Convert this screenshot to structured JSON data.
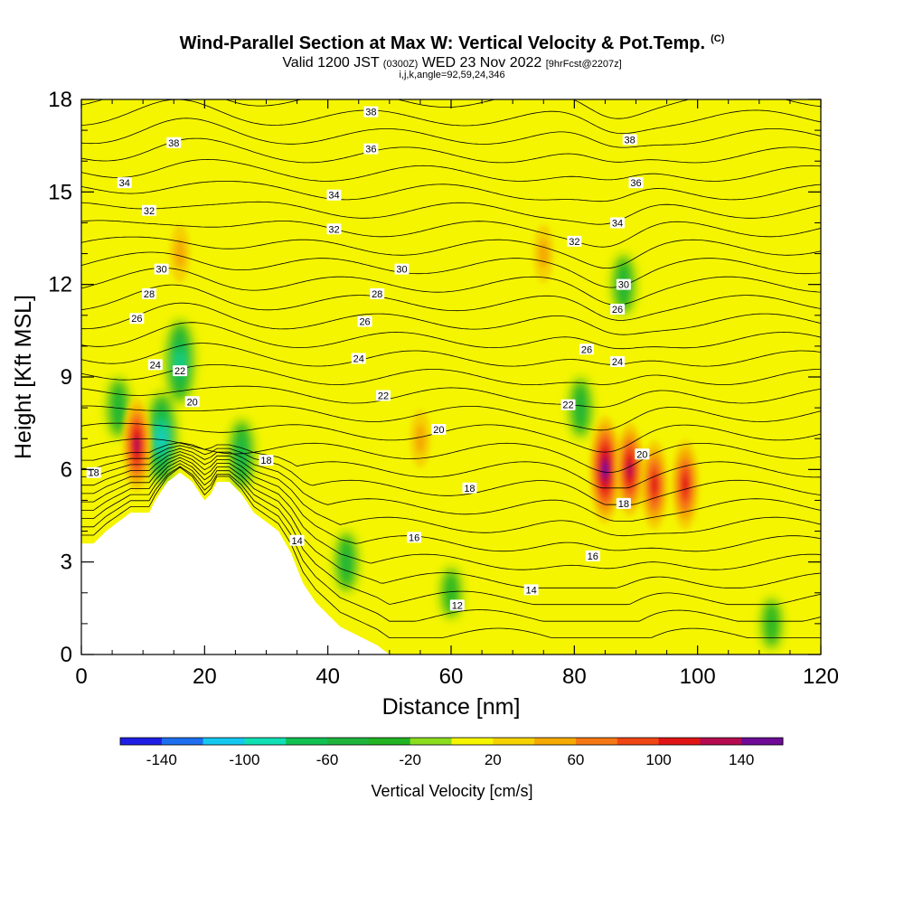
{
  "title": {
    "main": "Wind-Parallel Section at Max W: Vertical Velocity & Pot.Temp.",
    "unit": "(C)",
    "valid": "Valid 1200 JST",
    "valid_utc": "(0300Z)",
    "date": "WED 23 Nov 2022",
    "fcst": "[9hrFcst@2207z]",
    "section_params": "i,j,k,angle=92,59,24,346"
  },
  "chart_data": {
    "type": "heatmap",
    "xlabel": "Distance [nm]",
    "ylabel": "Height [Kft MSL]",
    "xlim": [
      0,
      120
    ],
    "ylim": [
      0,
      18
    ],
    "x_ticks": [
      "0",
      "20",
      "40",
      "60",
      "80",
      "100",
      "120"
    ],
    "y_ticks": [
      "0",
      "3",
      "6",
      "9",
      "12",
      "15",
      "18"
    ],
    "colorbar": {
      "label": "Vertical Velocity [cm/s]",
      "tick_labels": [
        "-140",
        "-100",
        "-60",
        "-20",
        "20",
        "60",
        "100",
        "140"
      ],
      "bins": [
        -160,
        -140,
        -120,
        -100,
        -80,
        -60,
        -40,
        -20,
        0,
        20,
        40,
        60,
        80,
        100,
        120,
        140,
        160
      ],
      "colors": [
        "#1e1ee6",
        "#1e6ef0",
        "#14c8f0",
        "#10e0b4",
        "#10c050",
        "#1eb43c",
        "#22b422",
        "#8cdc1e",
        "#f5f500",
        "#f5d200",
        "#f5aa00",
        "#f57814",
        "#f04614",
        "#e01414",
        "#b40a50",
        "#6e0a96"
      ]
    },
    "terrain_height_kft": [
      [
        0,
        3.6
      ],
      [
        2,
        3.6
      ],
      [
        4,
        4.0
      ],
      [
        6,
        4.3
      ],
      [
        8,
        4.6
      ],
      [
        11,
        4.6
      ],
      [
        12,
        5.0
      ],
      [
        14,
        5.6
      ],
      [
        16,
        5.9
      ],
      [
        18,
        5.6
      ],
      [
        20,
        5.0
      ],
      [
        21,
        5.2
      ],
      [
        22,
        5.6
      ],
      [
        24,
        5.6
      ],
      [
        26,
        5.2
      ],
      [
        28,
        4.6
      ],
      [
        30,
        4.3
      ],
      [
        32,
        4.0
      ],
      [
        34,
        3.3
      ],
      [
        36,
        2.3
      ],
      [
        38,
        1.7
      ],
      [
        40,
        1.3
      ],
      [
        42,
        0.9
      ],
      [
        45,
        0.6
      ],
      [
        48,
        0.3
      ],
      [
        50,
        0.0
      ],
      [
        120,
        0.0
      ]
    ],
    "updrafts": [
      {
        "x": 9,
        "y": 6.8,
        "w_cm_s": 120
      },
      {
        "x": 85,
        "y": 6.0,
        "w_cm_s": 150
      },
      {
        "x": 89,
        "y": 6.0,
        "w_cm_s": 120
      },
      {
        "x": 93,
        "y": 5.5,
        "w_cm_s": 110
      },
      {
        "x": 98,
        "y": 5.5,
        "w_cm_s": 110
      },
      {
        "x": 16,
        "y": 13.0,
        "w_cm_s": 40
      },
      {
        "x": 55,
        "y": 7.0,
        "w_cm_s": 40
      },
      {
        "x": 75,
        "y": 13.0,
        "w_cm_s": 40
      }
    ],
    "downdrafts": [
      {
        "x": 13,
        "y": 7.0,
        "w_cm_s": -110
      },
      {
        "x": 16,
        "y": 9.5,
        "w_cm_s": -90
      },
      {
        "x": 26,
        "y": 6.5,
        "w_cm_s": -60
      },
      {
        "x": 6,
        "y": 8.0,
        "w_cm_s": -40
      },
      {
        "x": 88,
        "y": 12.0,
        "w_cm_s": -40
      },
      {
        "x": 81,
        "y": 8.0,
        "w_cm_s": -40
      },
      {
        "x": 43,
        "y": 3.0,
        "w_cm_s": -40
      },
      {
        "x": 60,
        "y": 2.0,
        "w_cm_s": -20
      },
      {
        "x": 112,
        "y": 1.0,
        "w_cm_s": -20
      }
    ],
    "isentrope_labels": [
      {
        "text": "38",
        "x": 47,
        "y": 17.6
      },
      {
        "text": "38",
        "x": 15,
        "y": 16.6
      },
      {
        "text": "38",
        "x": 89,
        "y": 16.7
      },
      {
        "text": "36",
        "x": 47,
        "y": 16.4
      },
      {
        "text": "36",
        "x": 90,
        "y": 15.3
      },
      {
        "text": "34",
        "x": 7,
        "y": 15.3
      },
      {
        "text": "34",
        "x": 41,
        "y": 14.9
      },
      {
        "text": "34",
        "x": 87,
        "y": 14.0
      },
      {
        "text": "32",
        "x": 11,
        "y": 14.4
      },
      {
        "text": "32",
        "x": 41,
        "y": 13.8
      },
      {
        "text": "32",
        "x": 80,
        "y": 13.4
      },
      {
        "text": "30",
        "x": 13,
        "y": 12.5
      },
      {
        "text": "30",
        "x": 52,
        "y": 12.5
      },
      {
        "text": "30",
        "x": 88,
        "y": 12.0
      },
      {
        "text": "28",
        "x": 11,
        "y": 11.7
      },
      {
        "text": "28",
        "x": 48,
        "y": 11.7
      },
      {
        "text": "26",
        "x": 9,
        "y": 10.9
      },
      {
        "text": "26",
        "x": 46,
        "y": 10.8
      },
      {
        "text": "26",
        "x": 87,
        "y": 11.2
      },
      {
        "text": "26",
        "x": 82,
        "y": 9.9
      },
      {
        "text": "24",
        "x": 12,
        "y": 9.4
      },
      {
        "text": "24",
        "x": 45,
        "y": 9.6
      },
      {
        "text": "24",
        "x": 87,
        "y": 9.5
      },
      {
        "text": "22",
        "x": 16,
        "y": 9.2
      },
      {
        "text": "22",
        "x": 49,
        "y": 8.4
      },
      {
        "text": "22",
        "x": 79,
        "y": 8.1
      },
      {
        "text": "20",
        "x": 18,
        "y": 8.2
      },
      {
        "text": "20",
        "x": 58,
        "y": 7.3
      },
      {
        "text": "20",
        "x": 91,
        "y": 6.5
      },
      {
        "text": "18",
        "x": 2,
        "y": 5.9
      },
      {
        "text": "18",
        "x": 30,
        "y": 6.3
      },
      {
        "text": "18",
        "x": 63,
        "y": 5.4
      },
      {
        "text": "18",
        "x": 88,
        "y": 4.9
      },
      {
        "text": "16",
        "x": 54,
        "y": 3.8
      },
      {
        "text": "16",
        "x": 83,
        "y": 3.2
      },
      {
        "text": "14",
        "x": 35,
        "y": 3.7
      },
      {
        "text": "14",
        "x": 73,
        "y": 2.1
      },
      {
        "text": "12",
        "x": 61,
        "y": 1.6
      }
    ]
  }
}
